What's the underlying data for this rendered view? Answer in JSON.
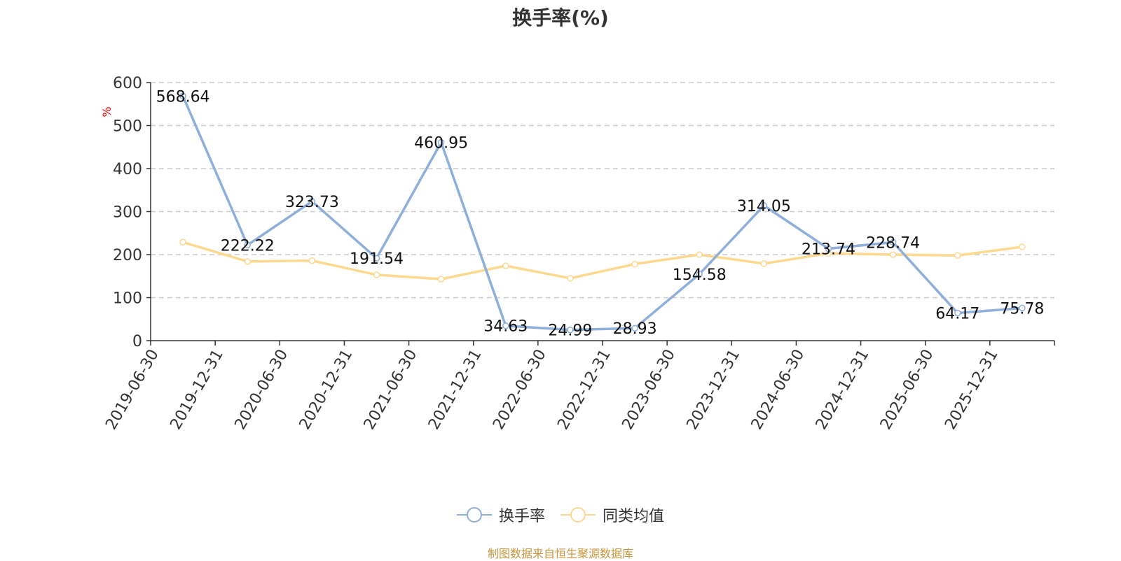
{
  "chart_data": {
    "type": "line",
    "title": "换手率(%)",
    "ylabel": "%",
    "categories": [
      "2019-06-30",
      "2019-12-31",
      "2020-06-30",
      "2020-12-31",
      "2021-06-30",
      "2021-12-31",
      "2022-06-30",
      "2022-12-31",
      "2023-06-30",
      "2023-12-31",
      "2024-06-30",
      "2024-12-31",
      "2025-06-30",
      "2025-12-31"
    ],
    "y_ticks": [
      0,
      100,
      200,
      300,
      400,
      500,
      600
    ],
    "ylim": [
      0,
      600
    ],
    "grid": true,
    "legend_position": "bottom",
    "series": [
      {
        "name": "换手率",
        "color": "#8eafda",
        "values": [
          568.64,
          222.22,
          323.73,
          191.54,
          460.95,
          34.63,
          24.99,
          28.93,
          154.58,
          314.05,
          213.74,
          228.74,
          64.17,
          75.78
        ],
        "labels": [
          "568.64",
          "222.22",
          "323.73",
          "191.54",
          "460.95",
          "34.63",
          "24.99",
          "28.93",
          "154.58",
          "314.05",
          "213.74",
          "228.74",
          "64.17",
          "75.78"
        ]
      },
      {
        "name": "同类均值",
        "color": "#fdd990",
        "values": [
          229,
          184,
          186,
          153,
          143,
          174,
          145,
          178,
          200,
          179,
          203,
          200,
          198,
          218
        ]
      }
    ]
  },
  "source": "制图数据来自恒生聚源数据库"
}
